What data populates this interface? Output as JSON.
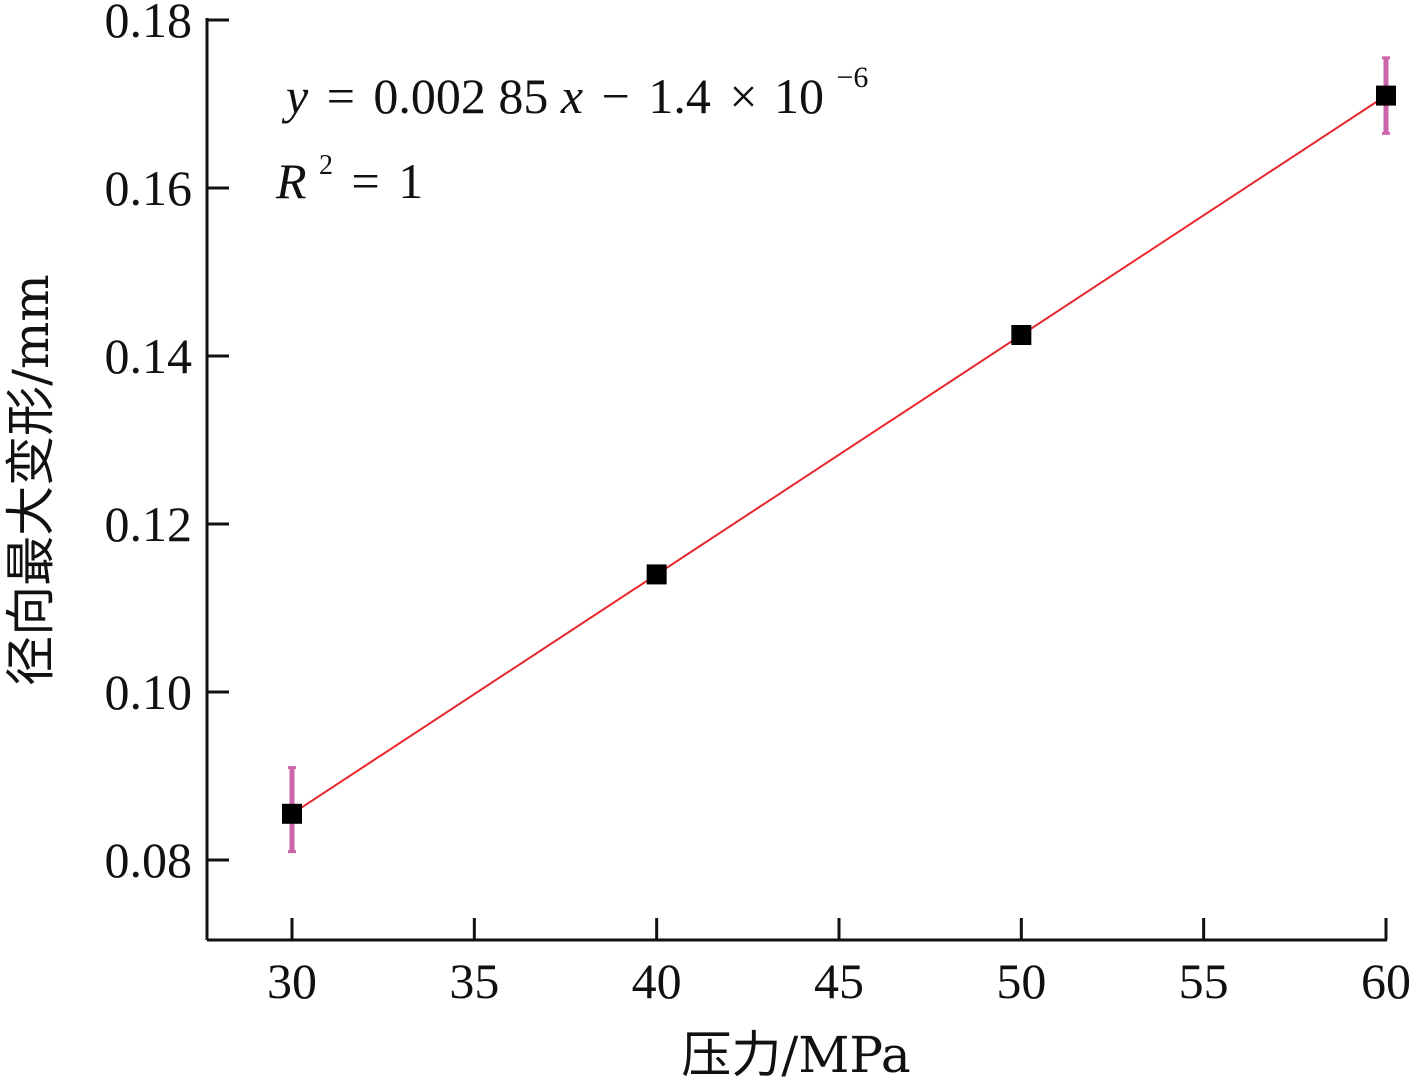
{
  "chart_data": {
    "type": "scatter",
    "title": "",
    "xlabel": "压力/MPa",
    "ylabel": "径向最大变形/mm",
    "xlim": [
      27.6,
      60
    ],
    "ylim": [
      0.07,
      0.18
    ],
    "x_ticks": [
      30,
      35,
      40,
      45,
      50,
      55,
      60
    ],
    "y_ticks": [
      0.08,
      0.1,
      0.12,
      0.14,
      0.16,
      0.18
    ],
    "x_tick_labels": [
      "30",
      "35",
      "40",
      "45",
      "50",
      "55",
      "60"
    ],
    "y_tick_labels": [
      "0.08",
      "0.10",
      "0.12",
      "0.14",
      "0.16",
      "0.18"
    ],
    "grid": false,
    "series": [
      {
        "marker": "square",
        "color": "#000000",
        "x": [
          30,
          40,
          50,
          60
        ],
        "y": [
          0.0855,
          0.114,
          0.1425,
          0.171
        ]
      }
    ],
    "fit_line": {
      "color": "#e8262a",
      "slope": 0.00285,
      "intercept": -1.4e-06,
      "x_range": [
        30,
        60
      ]
    },
    "error_bars": {
      "color": "#cc66aa",
      "points": [
        {
          "x": 30,
          "y": 0.0855,
          "low": 0.081,
          "high": 0.091
        },
        {
          "x": 60,
          "y": 0.171,
          "low": 0.1665,
          "high": 0.1755
        }
      ]
    },
    "annotations": {
      "equation": {
        "y_var": "y",
        "eq": "=",
        "coefficient": "0.002 85",
        "x_var": "x",
        "minus": "−",
        "constant": "1.4",
        "times": "×",
        "base": "10",
        "exponent": "−6"
      },
      "r_squared": {
        "symbol": "R",
        "superscript": "2",
        "eq": "=",
        "value": "1"
      }
    }
  }
}
